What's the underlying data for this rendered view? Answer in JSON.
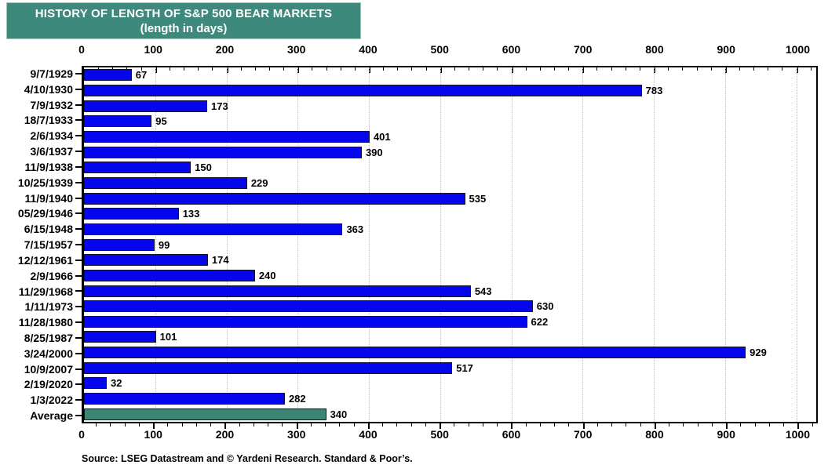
{
  "title": {
    "line1": "HISTORY OF LENGTH OF S&P 500 BEAR MARKETS",
    "line2": "(length in days)"
  },
  "footer": {
    "source": "Source: LSEG Datastream and © Yardeni Research. Standard & Poor’s."
  },
  "colors": {
    "title_bg": "#3D8A7C",
    "bar_blue": "#0505EE",
    "bar_average": "#3B8476",
    "bar_border": "#14142a",
    "grid": "#b9b9b9",
    "axis": "#000000"
  },
  "chart_data": {
    "type": "bar",
    "orientation": "horizontal",
    "title": "HISTORY OF LENGTH OF S&P 500 BEAR MARKETS",
    "subtitle": "(length in days)",
    "categories": [
      "9/7/1929",
      "4/10/1930",
      "7/9/1932",
      "18/7/1933",
      "2/6/1934",
      "3/6/1937",
      "11/9/1938",
      "10/25/1939",
      "11/9/1940",
      "05/29/1946",
      "6/15/1948",
      "7/15/1957",
      "12/12/1961",
      "2/9/1966",
      "11/29/1968",
      "1/11/1973",
      "11/28/1980",
      "8/25/1987",
      "3/24/2000",
      "10/9/2007",
      "2/19/2020",
      "1/3/2022",
      "Average"
    ],
    "values": [
      67,
      783,
      173,
      95,
      401,
      390,
      150,
      229,
      535,
      133,
      363,
      99,
      174,
      240,
      543,
      630,
      622,
      101,
      929,
      517,
      32,
      282,
      340
    ],
    "average_row_index": 22,
    "xlim": [
      0,
      1000
    ],
    "axis_max_units": 1028,
    "x_ticks": [
      0,
      100,
      200,
      300,
      400,
      500,
      600,
      700,
      800,
      900,
      1000
    ],
    "x_minor_step": 20,
    "grid": "vertical-dotted",
    "legend": "none",
    "xlabel": "",
    "ylabel": ""
  }
}
